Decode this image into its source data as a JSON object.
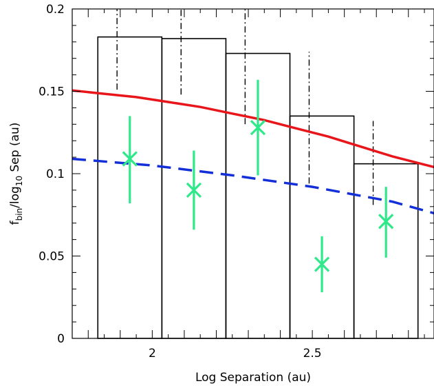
{
  "chart_data": {
    "type": "bar",
    "xlabel": "Log Separation (au)",
    "ylabel": {
      "f": "f",
      "f_sub": "bin",
      "mid": "/log",
      "log_sub": "10",
      "end": " Sep (au)"
    },
    "xlim": [
      1.75,
      2.88
    ],
    "ylim": [
      0,
      0.2
    ],
    "x_ticks": [
      {
        "value": 2,
        "label": "2"
      },
      {
        "value": 2.5,
        "label": "2.5"
      }
    ],
    "y_ticks": [
      {
        "value": 0,
        "label": "0"
      },
      {
        "value": 0.05,
        "label": "0.05"
      },
      {
        "value": 0.1,
        "label": "0.1"
      },
      {
        "value": 0.15,
        "label": "0.15"
      },
      {
        "value": 0.2,
        "label": "0.2"
      }
    ],
    "histogram": {
      "edges": [
        1.83,
        2.03,
        2.23,
        2.43,
        2.63,
        2.83
      ],
      "values": [
        0.183,
        0.182,
        0.173,
        0.135,
        0.106
      ],
      "color": "#000000"
    },
    "upper_error_bars": {
      "x": [
        1.89,
        2.09,
        2.29,
        2.49,
        2.69
      ],
      "low": [
        0.151,
        0.148,
        0.13,
        0.094,
        0.081
      ],
      "high": [
        0.2,
        0.2,
        0.2,
        0.174,
        0.132
      ],
      "color": "#000000"
    },
    "points": {
      "x": [
        1.93,
        2.13,
        2.33,
        2.53,
        2.73
      ],
      "y": [
        0.109,
        0.09,
        0.128,
        0.045,
        0.071
      ],
      "err_low": [
        0.082,
        0.066,
        0.099,
        0.028,
        0.049
      ],
      "err_high": [
        0.135,
        0.114,
        0.157,
        0.062,
        0.092
      ],
      "color": "#2ee88a"
    },
    "curves": [
      {
        "style": "solid",
        "color": "#e8151b",
        "x": [
          1.75,
          1.85,
          1.95,
          2.05,
          2.15,
          2.25,
          2.35,
          2.45,
          2.55,
          2.65,
          2.75,
          2.88
        ],
        "y": [
          0.1505,
          0.1485,
          0.1465,
          0.1435,
          0.1405,
          0.1365,
          0.1325,
          0.1275,
          0.1225,
          0.1165,
          0.1105,
          0.104
        ]
      },
      {
        "style": "dashed",
        "color": "#1330d8",
        "x": [
          1.75,
          2.0,
          2.25,
          2.5,
          2.75,
          2.88
        ],
        "y": [
          0.109,
          0.105,
          0.099,
          0.092,
          0.083,
          0.076
        ]
      }
    ]
  }
}
